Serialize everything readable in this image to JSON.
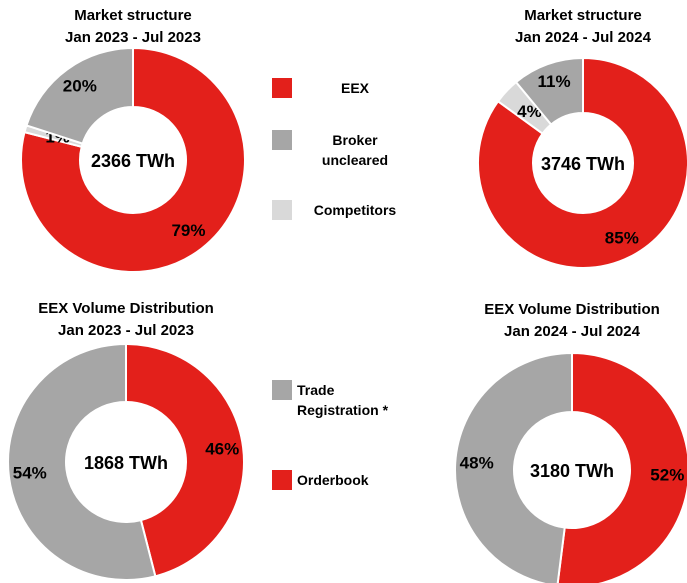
{
  "chart_data": [
    {
      "type": "donut",
      "title": "Market structure",
      "subtitle": "Jan 2023 - Jul 2023",
      "center_label": "2366 TWh",
      "categories": [
        "EEX",
        "Competitors",
        "Broker uncleared"
      ],
      "values": [
        79,
        1,
        20
      ],
      "value_labels": [
        "79%",
        "1%",
        "20%"
      ],
      "colors": [
        "#e3201b",
        "#d9d9d9",
        "#a6a6a6"
      ]
    },
    {
      "type": "donut",
      "title": "Market structure",
      "subtitle": "Jan 2024 - Jul 2024",
      "center_label": "3746 TWh",
      "categories": [
        "EEX",
        "Competitors",
        "Broker uncleared"
      ],
      "values": [
        85,
        4,
        11
      ],
      "value_labels": [
        "85%",
        "4%",
        "11%"
      ],
      "colors": [
        "#e3201b",
        "#d9d9d9",
        "#a6a6a6"
      ]
    },
    {
      "type": "donut",
      "title": "EEX Volume Distribution",
      "subtitle": "Jan 2023 - Jul 2023",
      "center_label": "1868 TWh",
      "categories": [
        "Orderbook",
        "Trade Registration *"
      ],
      "values": [
        46,
        54
      ],
      "value_labels": [
        "46%",
        "54%"
      ],
      "colors": [
        "#e3201b",
        "#a6a6a6"
      ]
    },
    {
      "type": "donut",
      "title": "EEX Volume Distribution",
      "subtitle": "Jan 2024 - Jul 2024",
      "center_label": "3180 TWh",
      "categories": [
        "Orderbook",
        "Trade Registration *"
      ],
      "values": [
        52,
        48
      ],
      "value_labels": [
        "52%",
        "48%"
      ],
      "colors": [
        "#e3201b",
        "#a6a6a6"
      ]
    }
  ]
}
